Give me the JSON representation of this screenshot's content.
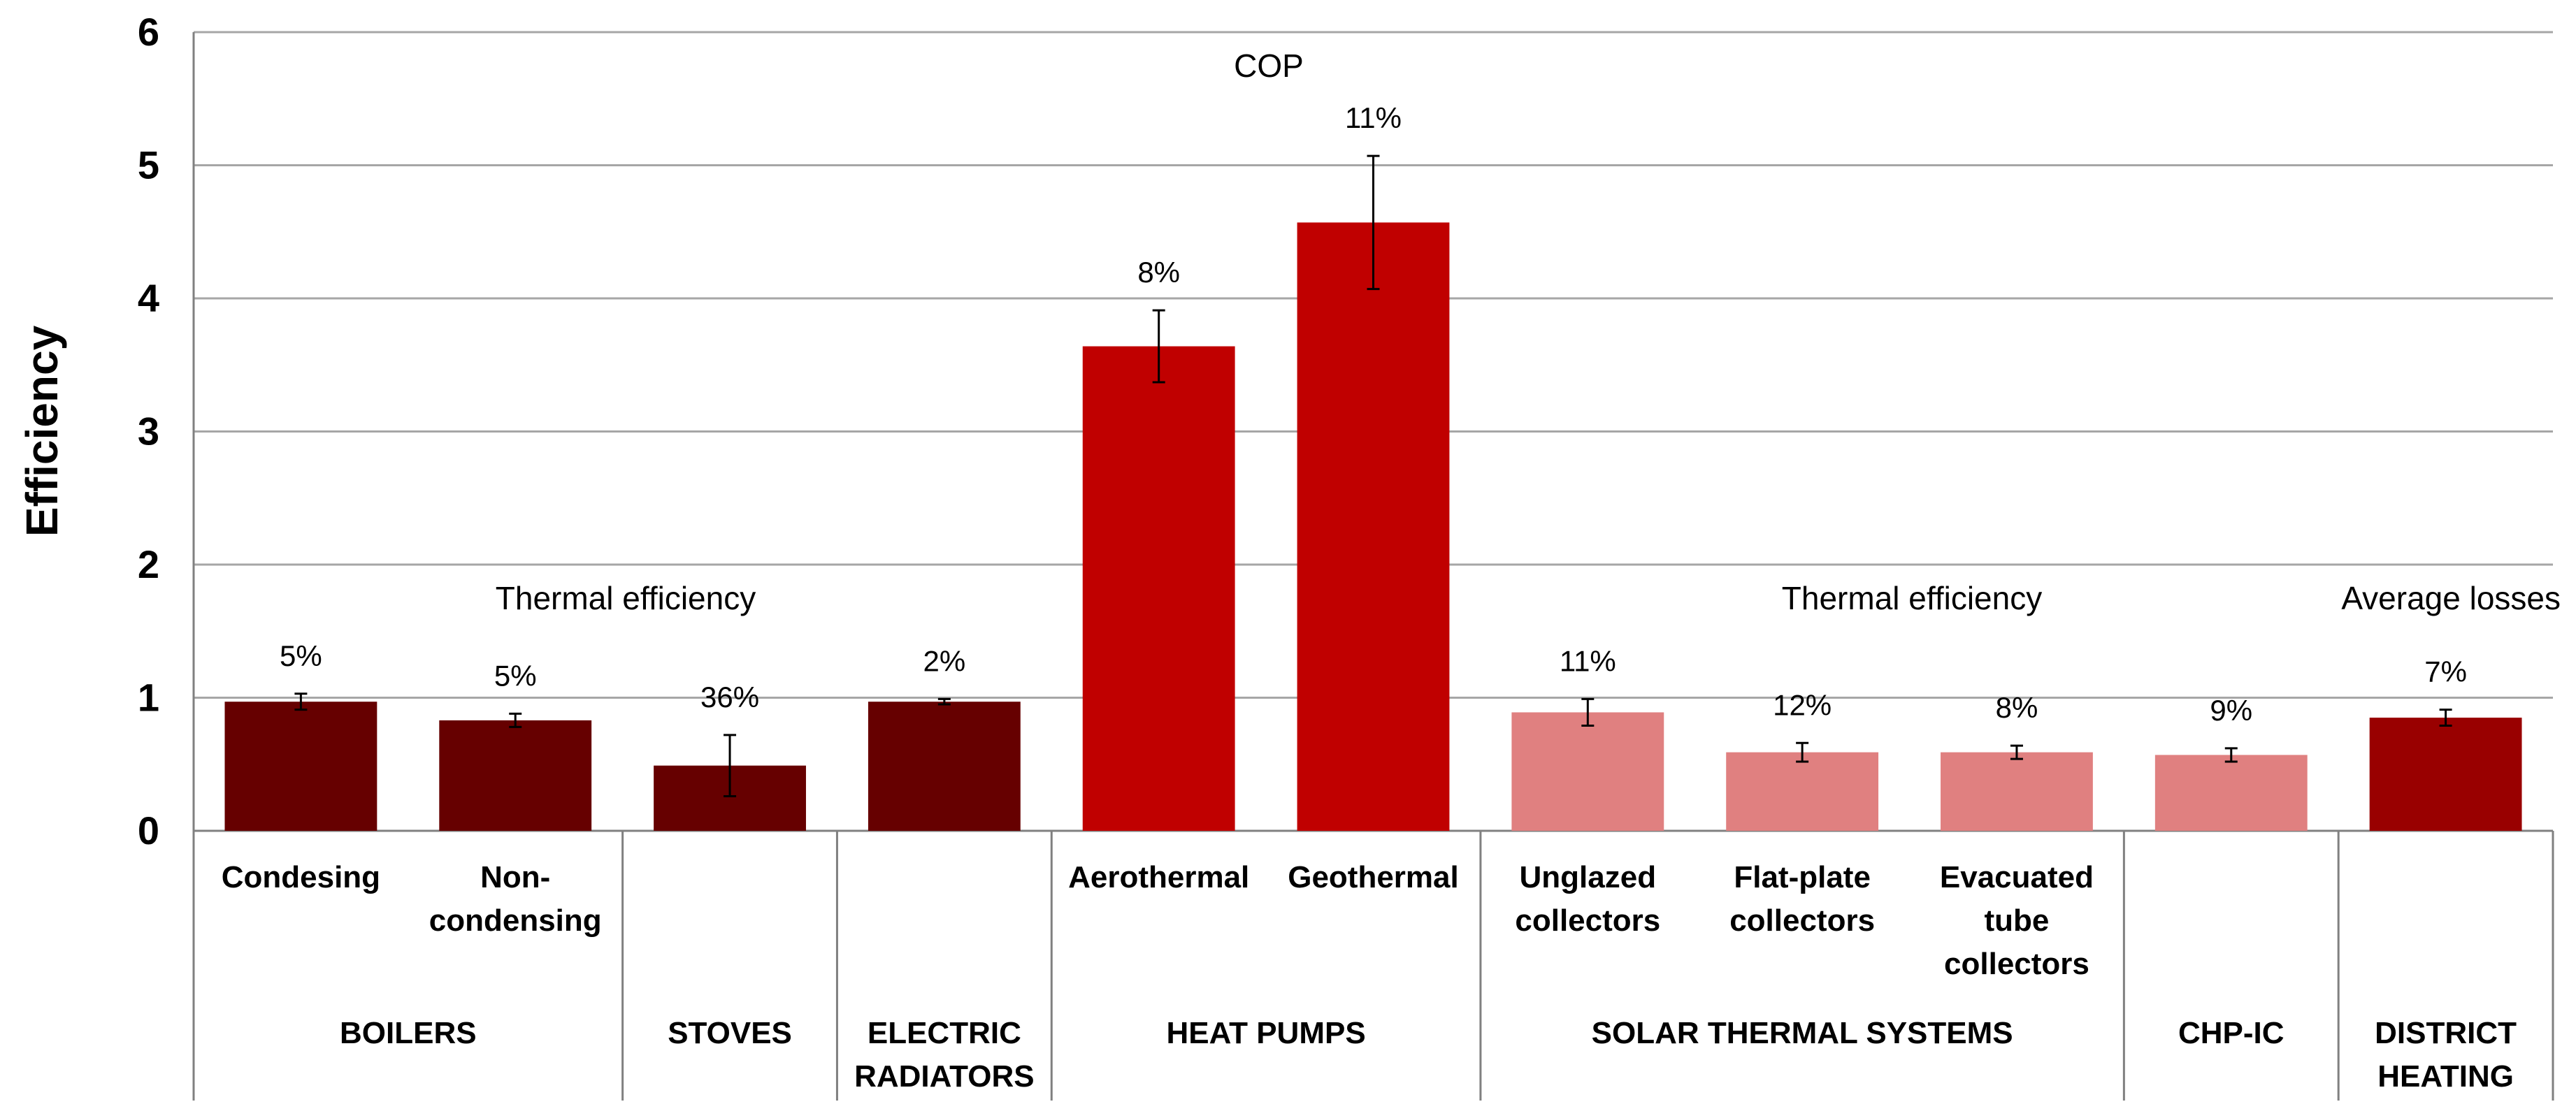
{
  "chart_data": {
    "type": "bar",
    "title": "",
    "xlabel": "",
    "ylabel": "Efficiency",
    "ylim": [
      0,
      6
    ],
    "yticks": [
      "0",
      "1",
      "2",
      "3",
      "4",
      "5",
      "6"
    ],
    "grid": true,
    "legend": "none",
    "colors": {
      "boilers_stoves_radiators": "#660000",
      "heat_pumps": "#C00000",
      "solar_chp": "#E08080",
      "district_heating": "#990000",
      "grid": "#A6A6A6",
      "axis": "#808080"
    },
    "categories": [
      "Condesing",
      "Non-condensing",
      "",
      "",
      "Aerothermal",
      "Geothermal",
      "Unglazed collectors",
      "Flat-plate collectors",
      "Evacuated tube collectors",
      "",
      ""
    ],
    "bars": [
      {
        "category": "Condesing",
        "value": 0.97,
        "error": 0.06,
        "label": "5%",
        "color": "#660000"
      },
      {
        "category": "Non-condensing",
        "value": 0.83,
        "error": 0.05,
        "label": "5%",
        "color": "#660000"
      },
      {
        "category": "",
        "value": 0.49,
        "error": 0.23,
        "label": "36%",
        "color": "#660000"
      },
      {
        "category": "",
        "value": 0.97,
        "error": 0.02,
        "label": "2%",
        "color": "#660000"
      },
      {
        "category": "Aerothermal",
        "value": 3.64,
        "error": 0.27,
        "label": "8%",
        "color": "#C00000"
      },
      {
        "category": "Geothermal",
        "value": 4.57,
        "error": 0.5,
        "label": "11%",
        "color": "#C00000"
      },
      {
        "category": "Unglazed collectors",
        "value": 0.89,
        "error": 0.1,
        "label": "11%",
        "color": "#E08080"
      },
      {
        "category": "Flat-plate collectors",
        "value": 0.59,
        "error": 0.07,
        "label": "12%",
        "color": "#E08080"
      },
      {
        "category": "Evacuated tube collectors",
        "value": 0.59,
        "error": 0.05,
        "label": "8%",
        "color": "#E08080"
      },
      {
        "category": "",
        "value": 0.57,
        "error": 0.05,
        "label": "9%",
        "color": "#E08080"
      },
      {
        "category": "",
        "value": 0.85,
        "error": 0.06,
        "label": "7%",
        "color": "#990000"
      }
    ],
    "groups": [
      {
        "label": "BOILERS",
        "bars": [
          0,
          1
        ]
      },
      {
        "label": "STOVES",
        "bars": [
          2
        ]
      },
      {
        "label": "ELECTRIC RADIATORS",
        "bars": [
          3
        ]
      },
      {
        "label": "HEAT PUMPS",
        "bars": [
          4,
          5
        ]
      },
      {
        "label": "SOLAR THERMAL SYSTEMS",
        "bars": [
          6,
          7,
          8
        ]
      },
      {
        "label": "CHP-IC",
        "bars": [
          9
        ]
      },
      {
        "label": "DISTRICT HEATING",
        "bars": [
          10
        ]
      }
    ],
    "annotations": [
      {
        "text": "Thermal efficiency",
        "near": "boilers-to-radiators"
      },
      {
        "text": "COP",
        "near": "heat-pumps"
      },
      {
        "text": "Thermal efficiency",
        "near": "solar-thermal-to-chp"
      },
      {
        "text": "Average losses",
        "near": "district-heating"
      }
    ]
  }
}
